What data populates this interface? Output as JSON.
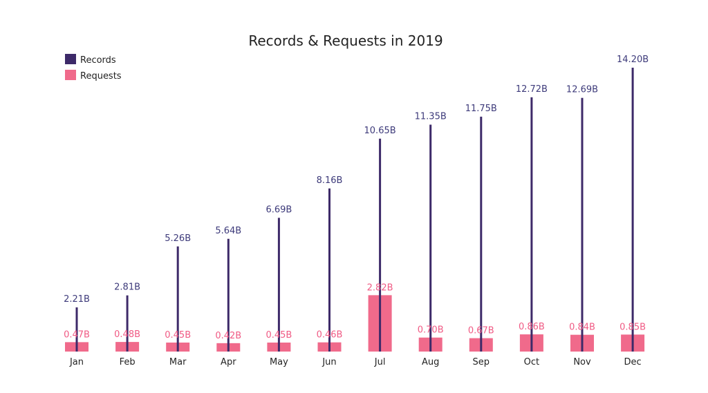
{
  "chart_data": {
    "type": "bar",
    "title": "Records & Requests in 2019",
    "categories": [
      "Jan",
      "Feb",
      "Mar",
      "Apr",
      "May",
      "Jun",
      "Jul",
      "Aug",
      "Sep",
      "Oct",
      "Nov",
      "Dec"
    ],
    "series": [
      {
        "name": "Records",
        "style": "line-bar",
        "color": "#3d2a69",
        "label_color": "#3d3a7a",
        "values": [
          2.21,
          2.81,
          5.26,
          5.64,
          6.69,
          8.16,
          10.65,
          11.35,
          11.75,
          12.72,
          12.69,
          14.2
        ],
        "labels": [
          "2.21B",
          "2.81B",
          "5.26B",
          "5.64B",
          "6.69B",
          "8.16B",
          "10.65B",
          "11.35B",
          "11.75B",
          "12.72B",
          "12.69B",
          "14.20B"
        ]
      },
      {
        "name": "Requests",
        "style": "bar",
        "color": "#f06a8b",
        "label_color": "#f05a84",
        "values": [
          0.47,
          0.48,
          0.45,
          0.42,
          0.45,
          0.46,
          2.82,
          0.7,
          0.67,
          0.86,
          0.84,
          0.85
        ],
        "labels": [
          "0.47B",
          "0.48B",
          "0.45B",
          "0.42B",
          "0.45B",
          "0.46B",
          "2.82B",
          "0.70B",
          "0.67B",
          "0.86B",
          "0.84B",
          "0.85B"
        ]
      }
    ],
    "xlabel": "",
    "ylabel": "",
    "ylim": [
      0,
      14.2
    ],
    "grid": false,
    "legend": "top-left"
  }
}
